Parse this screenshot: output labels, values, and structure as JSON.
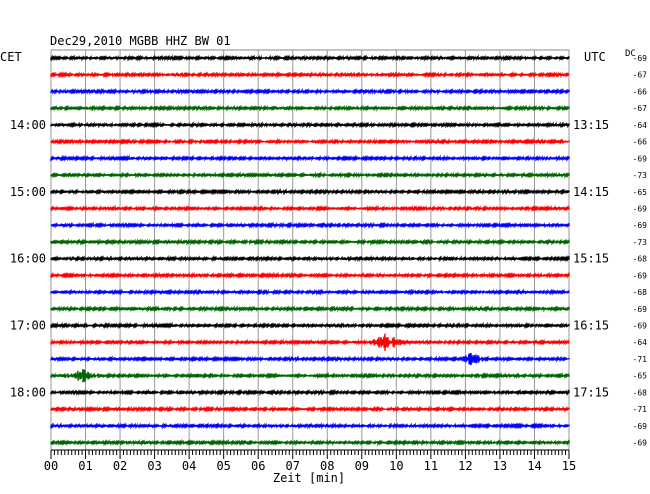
{
  "header": {
    "title": "Dec29,2010   MGBB HHZ BW 01",
    "left_zone": "CET",
    "right_zone": "UTC",
    "dc_label": "DC"
  },
  "chart_data": {
    "type": "line",
    "title": "Dec29,2010   MGBB HHZ BW 01",
    "xlabel": "Zeit [min]",
    "ylabel": "",
    "x_ticks": [
      "00",
      "01",
      "02",
      "03",
      "04",
      "05",
      "06",
      "07",
      "08",
      "09",
      "10",
      "11",
      "12",
      "13",
      "14",
      "15"
    ],
    "xlim": [
      0,
      15
    ],
    "row_minutes": 15,
    "left_time_labels": [
      "14:00",
      "15:00",
      "16:00",
      "17:00",
      "18:00"
    ],
    "right_time_labels": [
      "13:15",
      "14:15",
      "15:15",
      "16:15",
      "17:15"
    ],
    "time_label_rows": [
      4,
      8,
      12,
      16,
      20
    ],
    "trace_colors": [
      "#000000",
      "#ff0000",
      "#0000ff",
      "#006400"
    ],
    "dc_offsets": [
      -69,
      -67,
      -66,
      -67,
      -64,
      -66,
      -69,
      -73,
      -65,
      -69,
      -69,
      -73,
      -68,
      -69,
      -68,
      -69,
      -69,
      -64,
      -71,
      -65,
      -68,
      -71,
      -69,
      -69
    ],
    "events": [
      {
        "row": 17,
        "color": "#ff0000",
        "start_min": 9.0,
        "peak_min": 9.7,
        "end_min": 10.8,
        "amplitude": "large"
      },
      {
        "row": 18,
        "color": "#0000ff",
        "start_min": 11.4,
        "peak_min": 12.2,
        "end_min": 13.0,
        "amplitude": "medium"
      },
      {
        "row": 19,
        "color": "#006400",
        "start_min": 0.1,
        "peak_min": 0.9,
        "end_min": 2.1,
        "amplitude": "large"
      }
    ]
  }
}
